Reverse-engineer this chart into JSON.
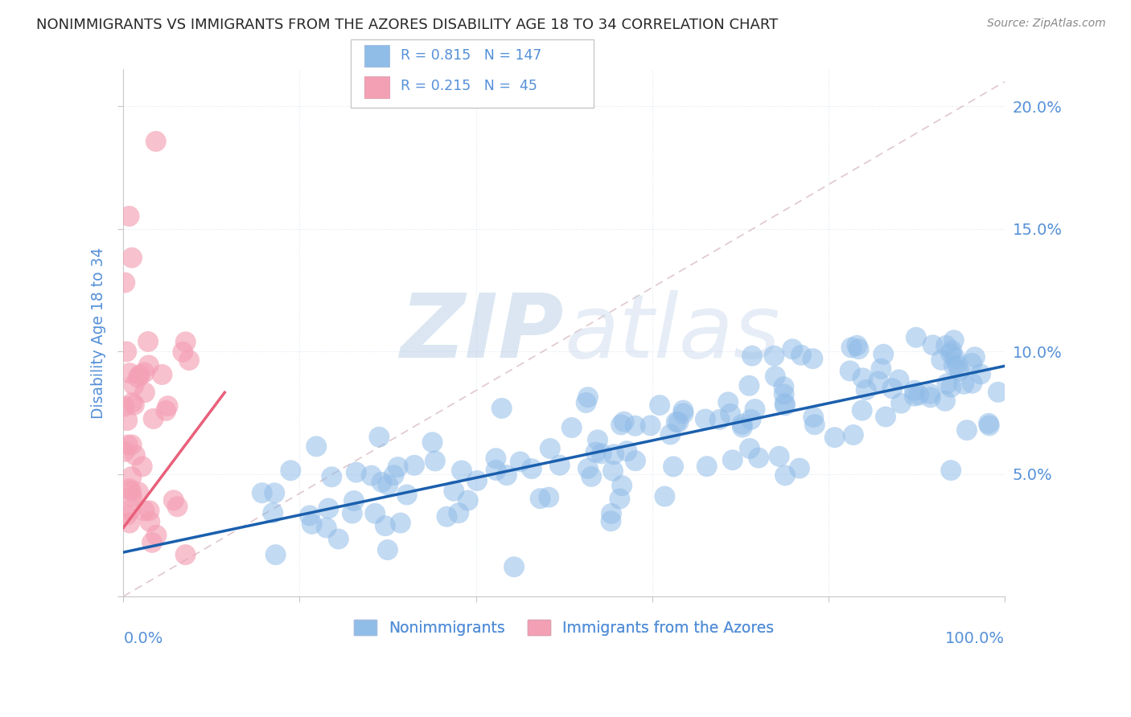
{
  "title": "NONIMMIGRANTS VS IMMIGRANTS FROM THE AZORES DISABILITY AGE 18 TO 34 CORRELATION CHART",
  "source": "Source: ZipAtlas.com",
  "ylabel": "Disability Age 18 to 34",
  "yticks": [
    0.0,
    0.05,
    0.1,
    0.15,
    0.2
  ],
  "ytick_labels": [
    "",
    "5.0%",
    "10.0%",
    "15.0%",
    "20.0%"
  ],
  "xlim": [
    0.0,
    1.0
  ],
  "ylim": [
    0.0,
    0.215
  ],
  "watermark_zip": "ZIP",
  "watermark_atlas": "atlas",
  "watermark_color": "#c8d8ee",
  "blue_color": "#90bce8",
  "pink_color": "#f4a0b4",
  "blue_line_color": "#1a5fad",
  "pink_line_color": "#e8607a",
  "ref_line_color": "#e0c8cc",
  "title_color": "#282828",
  "axis_color": "#5590d8",
  "grid_color": "#dce8f4",
  "blue_R": 0.815,
  "blue_N": 147,
  "pink_R": 0.215,
  "pink_N": 45,
  "blue_intercept": 0.018,
  "blue_slope": 0.076,
  "pink_intercept": 0.03,
  "pink_slope": 0.35
}
